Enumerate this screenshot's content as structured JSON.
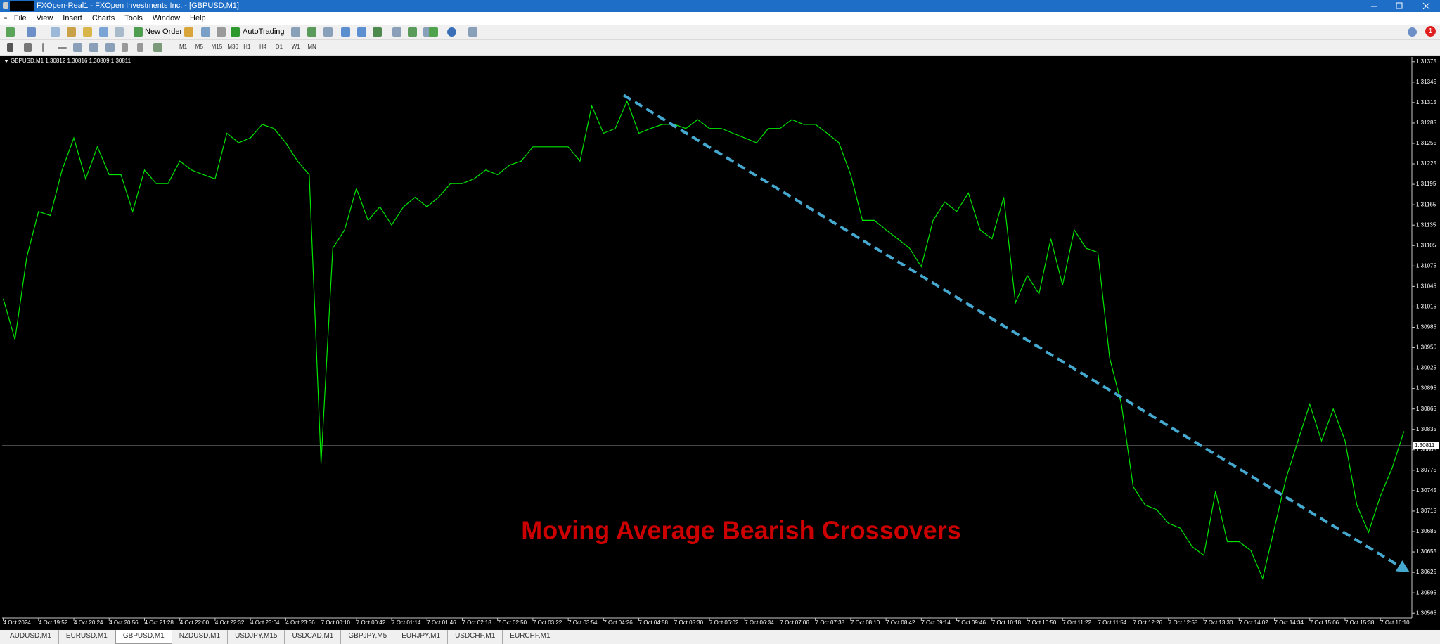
{
  "window": {
    "title": "FXOpen-Real1 - FXOpen Investments Inc. - [GBPUSD,M1]"
  },
  "menu": [
    "File",
    "View",
    "Insert",
    "Charts",
    "Tools",
    "Window",
    "Help"
  ],
  "toolbar": {
    "new_order": "New Order",
    "auto_trading": "AutoTrading",
    "notifications": "1"
  },
  "timeframes": [
    "M1",
    "M5",
    "M15",
    "M30",
    "H1",
    "H4",
    "D1",
    "W1",
    "MN"
  ],
  "tabs": [
    "AUDUSD,M1",
    "EURUSD,M1",
    "GBPUSD,M1",
    "NZDUSD,M1",
    "USDJPY,M15",
    "USDCAD,M1",
    "GBPJPY,M5",
    "EURJPY,M1",
    "USDCHF,M1",
    "EURCHF,M1"
  ],
  "active_tab": 2,
  "chart_data": {
    "type": "line",
    "info_label": "GBPUSD,M1  1.30812 1.30816 1.30809 1.30811",
    "annotation": "Moving Average Bearish Crossovers",
    "annotation_color": "#cc0000",
    "color": "#00e600",
    "categories": [
      "4 Oct 2024",
      null,
      null,
      "4 Oct 19:52",
      null,
      null,
      "4 Oct 20:24",
      null,
      null,
      "4 Oct 20:56",
      null,
      null,
      "4 Oct 21:28",
      null,
      null,
      "4 Oct 22:00",
      null,
      null,
      "4 Oct 22:32",
      null,
      null,
      "4 Oct 23:04",
      null,
      null,
      "4 Oct 23:36",
      null,
      null,
      "7 Oct 00:10",
      null,
      null,
      "7 Oct 00:42",
      null,
      null,
      "7 Oct 01:14",
      null,
      null,
      "7 Oct 01:46",
      null,
      null,
      "7 Oct 02:18",
      null,
      null,
      "7 Oct 02:50",
      null,
      null,
      "7 Oct 03:22",
      null,
      null,
      "7 Oct 03:54",
      null,
      null,
      "7 Oct 04:26",
      null,
      null,
      "7 Oct 04:58",
      null,
      null,
      "7 Oct 05:30",
      null,
      null,
      "7 Oct 06:02",
      null,
      null,
      "7 Oct 06:34",
      null,
      null,
      "7 Oct 07:06",
      null,
      null,
      "7 Oct 07:38",
      null,
      null,
      "7 Oct 08:10",
      null,
      null,
      "7 Oct 08:42",
      null,
      null,
      "7 Oct 09:14",
      null,
      null,
      "7 Oct 09:46",
      null,
      null,
      "7 Oct 10:18",
      null,
      null,
      "7 Oct 10:50",
      null,
      null,
      "7 Oct 11:22",
      null,
      null,
      "7 Oct 11:54",
      null,
      null,
      "7 Oct 12:26",
      null,
      null,
      "7 Oct 12:58",
      null,
      null,
      "7 Oct 13:30",
      null,
      null,
      "7 Oct 14:02",
      null,
      null,
      "7 Oct 14:34",
      null,
      null,
      "7 Oct 15:06",
      null,
      null,
      "7 Oct 15:38",
      null,
      null,
      "7 Oct 16:10",
      null,
      null
    ],
    "values": [
      1.31027,
      1.30967,
      1.31088,
      1.31155,
      1.31149,
      1.31216,
      1.31263,
      1.31203,
      1.3125,
      1.31209,
      1.31209,
      1.31155,
      1.31216,
      1.31196,
      1.31196,
      1.31229,
      1.31216,
      1.31209,
      1.31203,
      1.3127,
      1.31256,
      1.31263,
      1.31283,
      1.31277,
      1.31256,
      1.31229,
      1.31209,
      1.30785,
      1.31101,
      1.31128,
      1.31189,
      1.31142,
      1.31162,
      1.31135,
      1.31162,
      1.31176,
      1.31162,
      1.31176,
      1.31196,
      1.31196,
      1.31203,
      1.31216,
      1.31209,
      1.31223,
      1.31229,
      1.3125,
      1.3125,
      1.3125,
      1.3125,
      1.31229,
      1.3131,
      1.3127,
      1.31277,
      1.31317,
      1.3127,
      1.31277,
      1.31283,
      1.31283,
      1.31277,
      1.3129,
      1.31277,
      1.31277,
      1.3127,
      1.31263,
      1.31256,
      1.31277,
      1.31277,
      1.3129,
      1.31283,
      1.31283,
      1.3127,
      1.31256,
      1.31209,
      1.31142,
      1.31142,
      1.31128,
      1.31115,
      1.31101,
      1.31074,
      1.31142,
      1.31169,
      1.31155,
      1.31182,
      1.31128,
      1.31115,
      1.31176,
      1.31021,
      1.31061,
      1.31034,
      1.31115,
      1.31047,
      1.31128,
      1.31101,
      1.31095,
      1.3094,
      1.30872,
      1.30751,
      1.30724,
      1.30717,
      1.30697,
      1.3069,
      1.30663,
      1.3065,
      1.30744,
      1.3067,
      1.3067,
      1.30657,
      1.30616,
      1.3069,
      1.30764,
      1.30818,
      1.30872,
      1.30818,
      1.30865,
      1.30818,
      1.30724,
      1.30684,
      1.30737,
      1.30778,
      1.30832
    ],
    "ylim": [
      1.30558,
      1.31382
    ],
    "yticks": [
      1.30565,
      1.30595,
      1.30625,
      1.30655,
      1.30685,
      1.30715,
      1.30745,
      1.30775,
      1.30805,
      1.30835,
      1.30865,
      1.30895,
      1.30925,
      1.30955,
      1.30985,
      1.31015,
      1.31045,
      1.31075,
      1.31105,
      1.31135,
      1.31165,
      1.31195,
      1.31225,
      1.31255,
      1.31285,
      1.31315,
      1.31345,
      1.31375
    ],
    "grid": false,
    "current_price": 1.30811,
    "trend_line": {
      "x": [
        52.7,
        119.5
      ],
      "y": [
        1.31326,
        1.30625
      ],
      "color": "#45a8cf"
    }
  }
}
